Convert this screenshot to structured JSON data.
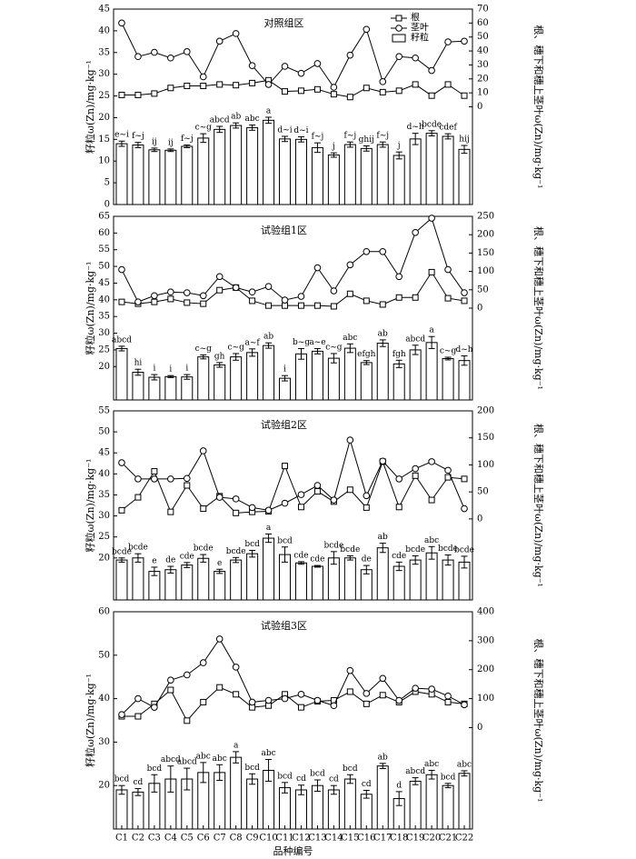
{
  "chart_data": [
    {
      "type": "bar_line",
      "title": "对照组区",
      "ylabel": "籽粒ω(Zn)/mg·kg⁻¹",
      "y2label": "根、穗下和穗上茎叶ω(Zn)/mg·kg⁻¹",
      "ylim": [
        0,
        45
      ],
      "yticks": [
        0,
        5,
        10,
        15,
        20,
        25,
        30,
        35,
        40,
        45
      ],
      "y2lim": [
        -70,
        70
      ],
      "y2ticks": [
        0,
        10,
        20,
        30,
        40,
        50,
        60,
        70
      ],
      "bars": {
        "name": "籽粒",
        "color": "#ffffff",
        "values": [
          14,
          13.7,
          12.6,
          12.5,
          13.4,
          15.3,
          17.3,
          18.2,
          17.7,
          19.4,
          15.1,
          15,
          13.1,
          11.4,
          13.8,
          12.9,
          13.8,
          11.3,
          15.1,
          16.4,
          15.7,
          12.7
        ],
        "errors": [
          0.6,
          0.6,
          0.4,
          0.3,
          0.3,
          1,
          0.7,
          0.6,
          0.6,
          0.7,
          0.6,
          0.6,
          1.1,
          0.5,
          0.6,
          0.6,
          0.6,
          0.8,
          1.3,
          0.6,
          0.6,
          0.9
        ],
        "letters": [
          "e~i",
          "f~j",
          "ij",
          "ij",
          "f~j",
          "c~g",
          "abcd",
          "ab",
          "abc",
          "a",
          "d~i",
          "d~i",
          "f~j",
          "j",
          "f~j",
          "ghij",
          "f~j",
          "j",
          "d~h",
          "bcde",
          "cdef",
          "hij"
        ]
      },
      "series": [
        {
          "name": "根",
          "marker": "square",
          "axis": "y2",
          "color": "#000000",
          "values": [
            8.5,
            8.5,
            9.5,
            13.5,
            15,
            15,
            16,
            15.5,
            17,
            19,
            11,
            11.5,
            12.5,
            9,
            7,
            13.5,
            10.5,
            11.5,
            16,
            8,
            16,
            8
          ]
        },
        {
          "name": "茎叶",
          "marker": "circle",
          "axis": "y2",
          "color": "#000000",
          "values": [
            60,
            36,
            39,
            35,
            39.5,
            21.5,
            47,
            52.5,
            29.5,
            16,
            29,
            24,
            31,
            14,
            37,
            55.5,
            18,
            36,
            35,
            26,
            46.5,
            47
          ]
        }
      ]
    },
    {
      "type": "bar_line",
      "title": "试验组1区",
      "ylabel": "籽粒ω(Zn)/mg·kg⁻¹",
      "y2label": "根、穗下和穗上茎叶ω(Zn)/mg·kg⁻¹",
      "ylim": [
        10,
        65
      ],
      "yticks": [
        20,
        25,
        30,
        35,
        40,
        45,
        50,
        55,
        60,
        65
      ],
      "y2lim": [
        -250,
        250
      ],
      "y2ticks": [
        0,
        50,
        100,
        150,
        200,
        250
      ],
      "bars": {
        "color": "#ffffff",
        "values": [
          25.4,
          18.3,
          16.8,
          17,
          16.9,
          22.9,
          20.5,
          22.9,
          24.2,
          26.3,
          16.5,
          23.8,
          24.6,
          22.5,
          25.5,
          21.2,
          27,
          20.8,
          25,
          27.2,
          22.4,
          21.8
        ],
        "errors": [
          0.7,
          0.9,
          0.8,
          0.3,
          0.7,
          0.6,
          0.7,
          1,
          1.1,
          0.8,
          0.8,
          1.6,
          0.8,
          1.4,
          1.3,
          0.6,
          1,
          1.1,
          1.4,
          1.8,
          0.4,
          1.4
        ],
        "letters": [
          "abcd",
          "hi",
          "i",
          "i",
          "i",
          "c~g",
          "gh",
          "c~g",
          "a~f",
          "ab",
          "i",
          "b~g",
          "a~e",
          "c~g",
          "abc",
          "efgh",
          "ab",
          "fgh",
          "abcd",
          "a",
          "c~g",
          "d~h"
        ]
      },
      "series": [
        {
          "marker": "square",
          "axis": "y2",
          "color": "#000000",
          "values": [
            17,
            12,
            17,
            25,
            15,
            12,
            49,
            56,
            20,
            7,
            7,
            7,
            7,
            5,
            39,
            20,
            10,
            29,
            29,
            98,
            27,
            20
          ]
        },
        {
          "marker": "circle",
          "axis": "y2",
          "color": "#000000",
          "values": [
            105,
            17,
            34,
            44,
            42,
            34,
            86,
            56,
            44,
            59,
            22,
            32,
            110,
            47,
            118,
            154,
            154,
            86,
            206,
            245,
            105,
            42
          ]
        }
      ]
    },
    {
      "type": "bar_line",
      "title": "试验组2区",
      "ylabel": "籽粒ω(Zn)/mg·kg⁻¹",
      "y2label": "根、穗下和穗上茎叶ω(Zn)/mg·kg⁻¹",
      "ylim": [
        10,
        55
      ],
      "yticks": [
        20,
        25,
        30,
        35,
        40,
        45,
        50,
        55
      ],
      "y2lim": [
        -150,
        200
      ],
      "y2ticks": [
        0,
        50,
        100,
        150,
        200
      ],
      "bars": {
        "color": "#ffffff",
        "values": [
          19.5,
          20,
          16.8,
          17.2,
          18.3,
          19.9,
          16.8,
          19.5,
          21,
          24.7,
          20.8,
          18.8,
          18,
          20,
          20,
          17.2,
          22.4,
          18,
          19.5,
          21.2,
          19.5,
          19
        ],
        "errors": [
          0.5,
          1,
          1,
          0.8,
          0.6,
          0.9,
          0.5,
          0.6,
          0.8,
          1,
          1.8,
          0.3,
          0.2,
          1.5,
          0.5,
          1,
          1.1,
          1,
          1,
          1.5,
          1.2,
          1.4
        ],
        "letters": [
          "bcde",
          "bcde",
          "e",
          "de",
          "cde",
          "bcde",
          "e",
          "bcde",
          "bcd",
          "a",
          "bcd",
          "cde",
          "cde",
          "bcde",
          "bcde",
          "de",
          "ab",
          "cde",
          "bcde",
          "abc",
          "bcde",
          "bcde"
        ]
      },
      "series": [
        {
          "marker": "square",
          "axis": "y2",
          "color": "#000000",
          "values": [
            16,
            40,
            88,
            13,
            62,
            19,
            42,
            11,
            13,
            14,
            98,
            22,
            51,
            32,
            54,
            21,
            106,
            22,
            80,
            35,
            77,
            74
          ]
        },
        {
          "marker": "circle",
          "axis": "y2",
          "color": "#000000",
          "values": [
            104,
            74,
            74,
            74,
            75,
            126,
            40,
            37,
            21,
            16,
            29,
            45,
            62,
            35,
            146,
            43,
            107,
            74,
            93,
            106,
            90,
            19
          ]
        }
      ]
    },
    {
      "type": "bar_line",
      "title": "试验组3区",
      "ylabel": "籽粒ω(Zn)/mg·kg⁻¹",
      "y2label": "根、穗下和穗上茎叶ω(Zn)/mg·kg⁻¹",
      "xlabel": "品种编号",
      "categories": [
        "C1",
        "C2",
        "C3",
        "C4",
        "C5",
        "C6",
        "C7",
        "C8",
        "C9",
        "C10",
        "C11",
        "C12",
        "C13",
        "C14",
        "C15",
        "C16",
        "C17",
        "C18",
        "C19",
        "C20",
        "C21",
        "C22"
      ],
      "ylim": [
        10,
        60
      ],
      "yticks": [
        20,
        30,
        40,
        50,
        60
      ],
      "y2lim": [
        -350,
        400
      ],
      "y2ticks": [
        0,
        100,
        200,
        300,
        400
      ],
      "bars": {
        "color": "#ffffff",
        "values": [
          19,
          18.5,
          20.5,
          21.5,
          21.5,
          23,
          23,
          26.5,
          21.5,
          23.5,
          19.5,
          19,
          20,
          19,
          21.5,
          18,
          24.5,
          17,
          21,
          22.5,
          20,
          22.8
        ],
        "errors": [
          1,
          0.8,
          2,
          3,
          2.5,
          2.3,
          1.8,
          1.3,
          1.2,
          2.5,
          1.2,
          1.1,
          1.3,
          1,
          1,
          0.9,
          0.6,
          1.6,
          0.8,
          1,
          0.5,
          0.6
        ],
        "letters": [
          "bcd",
          "cd",
          "bcd",
          "abcd",
          "abcd",
          "abc",
          "abc",
          "a",
          "bcd",
          "abc",
          "bcd",
          "cd",
          "bcd",
          "cd",
          "bcd",
          "cd",
          "ab",
          "d",
          "abcd",
          "abc",
          "bcd",
          "abc"
        ]
      },
      "series": [
        {
          "marker": "square",
          "axis": "y2",
          "color": "#000000",
          "values": [
            39,
            39,
            82,
            130,
            24,
            88,
            139,
            115,
            70,
            76,
            115,
            70,
            91,
            94,
            124,
            82,
            112,
            88,
            124,
            115,
            88,
            82
          ]
        },
        {
          "marker": "circle",
          "axis": "y2",
          "color": "#000000",
          "values": [
            45,
            100,
            70,
            164,
            182,
            224,
            306,
            209,
            88,
            94,
            100,
            115,
            94,
            76,
            197,
            118,
            170,
            94,
            136,
            133,
            109,
            79
          ]
        }
      ]
    }
  ]
}
